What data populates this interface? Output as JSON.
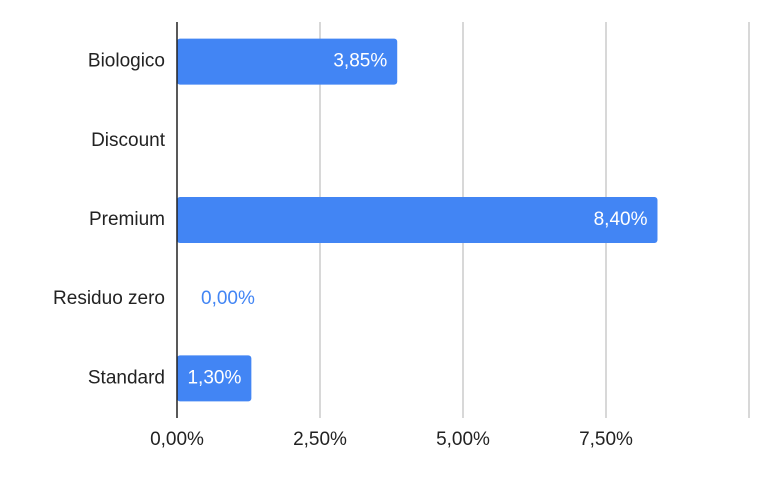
{
  "chart_data": {
    "type": "hbar",
    "categories": [
      "Biologico",
      "Discount",
      "Premium",
      "Residuo zero",
      "Standard"
    ],
    "values": [
      3.85,
      null,
      8.4,
      0.0,
      1.3
    ],
    "value_labels": [
      "3,85%",
      null,
      "8,40%",
      "0,00%",
      "1,30%"
    ],
    "color": "#4285f4",
    "xlim": [
      0,
      10
    ],
    "xticks": [
      {
        "value": 0,
        "label": "0,00%"
      },
      {
        "value": 2.5,
        "label": "2,50%"
      },
      {
        "value": 5,
        "label": "5,00%"
      },
      {
        "value": 7.5,
        "label": "7,50%"
      }
    ],
    "grid": true
  }
}
